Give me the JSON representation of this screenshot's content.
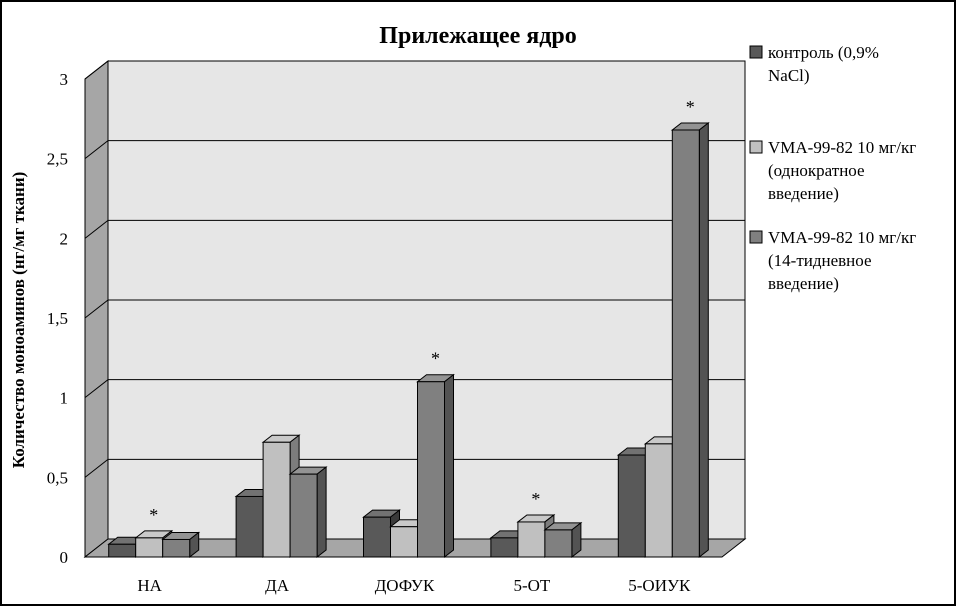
{
  "chart_data": {
    "type": "bar",
    "title": "Прилежащее ядро",
    "xlabel": "",
    "ylabel": "Количество моноаминов (нг/мг ткани)",
    "ylim": [
      0,
      3
    ],
    "yticks": [
      "0",
      "0,5",
      "1",
      "1,5",
      "2",
      "2,5",
      "3"
    ],
    "categories": [
      "НА",
      "ДА",
      "ДОФУК",
      "5-ОТ",
      "5-ОИУК"
    ],
    "series": [
      {
        "name": "контроль (0,9% NaCl)",
        "legend_lines": [
          "контроль (0,9%",
          "NaCl)"
        ],
        "color": "#595959",
        "values": [
          0.08,
          0.38,
          0.25,
          0.12,
          0.64
        ]
      },
      {
        "name": "VMA-99-82 10 мг/кг (однократное введение)",
        "legend_lines": [
          "VMA-99-82 10 мг/кг",
          "(однократное",
          "введение)"
        ],
        "color": "#c0c0c0",
        "values": [
          0.12,
          0.72,
          0.19,
          0.22,
          0.71
        ]
      },
      {
        "name": "VMA-99-82 10 мг/кг (14-тидневное введение)",
        "legend_lines": [
          "VMA-99-82 10 мг/кг",
          "(14-тидневное",
          "введение)"
        ],
        "color": "#808080",
        "values": [
          0.11,
          0.52,
          1.1,
          0.17,
          2.68
        ]
      }
    ],
    "annotations": [
      {
        "category": "НА",
        "series": 1,
        "text": "*"
      },
      {
        "category": "ДОФУК",
        "series": 2,
        "text": "*"
      },
      {
        "category": "5-ОТ",
        "series": 1,
        "text": "*"
      },
      {
        "category": "5-ОИУК",
        "series": 2,
        "text": "*"
      }
    ],
    "grid": true,
    "legend_position": "right"
  }
}
